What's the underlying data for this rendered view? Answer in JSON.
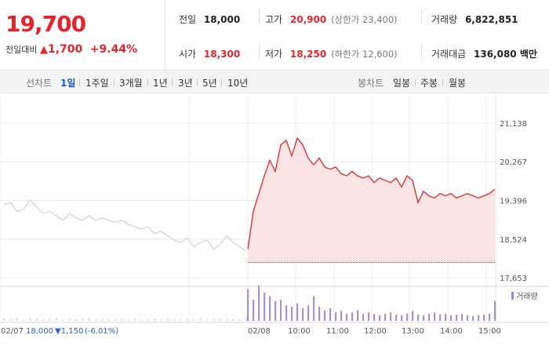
{
  "price": {
    "current": "19,700",
    "change_label": "전일대비",
    "change_value": "1,700",
    "change_pct": "+9.44%"
  },
  "stats": {
    "prev_close": {
      "label": "전일",
      "value": "18,000"
    },
    "high": {
      "label": "고가",
      "value": "20,900",
      "limit": "(상한가 23,400)"
    },
    "volume": {
      "label": "거래량",
      "value": "6,822,851"
    },
    "open": {
      "label": "시가",
      "value": "18,300"
    },
    "low": {
      "label": "저가",
      "value": "18,250",
      "limit": "(하한가 12,600)"
    },
    "amount": {
      "label": "거래대금",
      "value": "136,080 백만"
    }
  },
  "line_tabs": {
    "label": "선차트",
    "items": [
      "1일",
      "1주일",
      "3개월",
      "1년",
      "3년",
      "5년",
      "10년"
    ],
    "selected": "1일"
  },
  "candle_tabs": {
    "label": "봉차트",
    "items": [
      "일봉",
      "주봉",
      "월봉"
    ]
  },
  "prev_day_info": {
    "date": "02/07",
    "close": "18,000",
    "change": "▼1,150",
    "pct": "(-6.01%)"
  },
  "volume_legend": "거래량",
  "colors": {
    "up": "#e2252b",
    "down": "#2b5fcc",
    "volume": "#9b87c9",
    "line_prev": "#c8c8c8",
    "fill_today": "#fce4e4"
  },
  "chart_data": {
    "type": "line",
    "y_ticks": [
      21138,
      20267,
      19396,
      18524,
      17653
    ],
    "ylim": [
      17653,
      21138
    ],
    "reference_line": 18000,
    "x_labels": [
      "02/08",
      "10:00",
      "11:00",
      "12:00",
      "13:00",
      "14:00",
      "15:00"
    ],
    "series": [
      {
        "values": [
          19300,
          19350,
          19150,
          19200,
          19400,
          19250,
          19100,
          19150,
          19050,
          18950,
          19100,
          19000,
          18950,
          19050,
          18950,
          19000,
          18950,
          18900,
          18950,
          18850,
          18800,
          18750,
          18800,
          18650,
          18700,
          18600,
          18500,
          18450,
          18550,
          18350,
          18450,
          18500,
          18300,
          18400,
          18600,
          18450,
          18350,
          18250
        ]
      },
      {
        "values": [
          18300,
          19150,
          19550,
          19950,
          20300,
          20050,
          20650,
          20750,
          20400,
          20800,
          20650,
          20350,
          20200,
          20350,
          20150,
          20100,
          20150,
          20000,
          19950,
          20050,
          19950,
          19900,
          19950,
          19800,
          19900,
          19850,
          19800,
          19900,
          19700,
          19950,
          19850,
          19350,
          19600,
          19500,
          19450,
          19550,
          19500,
          19550,
          19450,
          19500,
          19550,
          19500,
          19450,
          19500,
          19550,
          19650
        ]
      }
    ],
    "volume_series": [
      {
        "values": [
          4,
          3,
          5,
          2,
          4,
          3,
          2,
          3,
          4,
          2,
          3,
          2,
          3,
          4,
          2,
          3,
          2,
          2,
          3,
          2,
          3,
          2,
          2,
          3,
          2,
          3,
          2,
          2,
          3,
          2,
          3,
          2,
          2,
          3,
          2,
          3,
          2,
          6
        ]
      },
      {
        "values": [
          45,
          30,
          50,
          40,
          35,
          28,
          30,
          22,
          20,
          25,
          18,
          22,
          35,
          20,
          15,
          18,
          12,
          14,
          10,
          12,
          15,
          10,
          12,
          10,
          8,
          10,
          12,
          9,
          8,
          10,
          14,
          9,
          8,
          10,
          12,
          9,
          10,
          8,
          9,
          10,
          8,
          7,
          8,
          9,
          10,
          28
        ]
      }
    ]
  }
}
